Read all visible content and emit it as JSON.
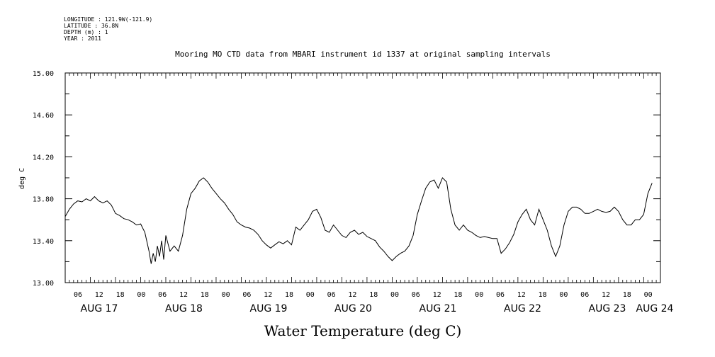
{
  "header": {
    "longitude": "LONGITUDE : 121.9W(-121.9)",
    "latitude": "LATITUDE : 36.8N",
    "depth": "DEPTH (m) : 1",
    "year": "YEAR : 2011"
  },
  "chart_data": {
    "type": "line",
    "title": "Mooring MO CTD data from MBARI instrument id 1337 at original sampling intervals",
    "xlabel": "Water Temperature (deg C)",
    "ylabel": "deg C",
    "ylim": [
      13.0,
      15.0
    ],
    "xlim_hours": [
      0,
      142
    ],
    "y_ticks": [
      "13.00",
      "13.40",
      "13.80",
      "14.20",
      "14.60",
      "15.00"
    ],
    "hour_tick_labels": [
      "06",
      "12",
      "18",
      "00",
      "06",
      "12",
      "18",
      "00",
      "06",
      "12",
      "18",
      "00",
      "06",
      "12",
      "18",
      "00",
      "06",
      "12",
      "18",
      "00",
      "06",
      "12",
      "18",
      "00",
      "06",
      "12",
      "18",
      "00"
    ],
    "day_labels": [
      "AUG 17",
      "AUG 18",
      "AUG 19",
      "AUG 20",
      "AUG 21",
      "AUG 22",
      "AUG 23",
      "AUG 24"
    ],
    "grid": false,
    "series": [
      {
        "values": [
          [
            0,
            13.63
          ],
          [
            1,
            13.7
          ],
          [
            2,
            13.75
          ],
          [
            3,
            13.78
          ],
          [
            4,
            13.77
          ],
          [
            5,
            13.8
          ],
          [
            6,
            13.78
          ],
          [
            7,
            13.82
          ],
          [
            8,
            13.78
          ],
          [
            9,
            13.76
          ],
          [
            10,
            13.78
          ],
          [
            11,
            13.74
          ],
          [
            12,
            13.66
          ],
          [
            13,
            13.64
          ],
          [
            14,
            13.61
          ],
          [
            15,
            13.6
          ],
          [
            16,
            13.58
          ],
          [
            17,
            13.55
          ],
          [
            18,
            13.56
          ],
          [
            19,
            13.48
          ],
          [
            20,
            13.3
          ],
          [
            20.5,
            13.18
          ],
          [
            21,
            13.28
          ],
          [
            21.5,
            13.2
          ],
          [
            22,
            13.35
          ],
          [
            22.5,
            13.25
          ],
          [
            23,
            13.4
          ],
          [
            23.5,
            13.22
          ],
          [
            24,
            13.45
          ],
          [
            25,
            13.3
          ],
          [
            26,
            13.35
          ],
          [
            27,
            13.3
          ],
          [
            28,
            13.45
          ],
          [
            29,
            13.7
          ],
          [
            30,
            13.85
          ],
          [
            31,
            13.9
          ],
          [
            32,
            13.97
          ],
          [
            33,
            14.0
          ],
          [
            34,
            13.96
          ],
          [
            35,
            13.9
          ],
          [
            36,
            13.85
          ],
          [
            37,
            13.8
          ],
          [
            38,
            13.76
          ],
          [
            39,
            13.7
          ],
          [
            40,
            13.65
          ],
          [
            41,
            13.58
          ],
          [
            42,
            13.55
          ],
          [
            43,
            13.53
          ],
          [
            44,
            13.52
          ],
          [
            45,
            13.5
          ],
          [
            46,
            13.46
          ],
          [
            47,
            13.4
          ],
          [
            48,
            13.36
          ],
          [
            49,
            13.33
          ],
          [
            50,
            13.36
          ],
          [
            51,
            13.39
          ],
          [
            52,
            13.37
          ],
          [
            53,
            13.4
          ],
          [
            54,
            13.36
          ],
          [
            55,
            13.53
          ],
          [
            56,
            13.5
          ],
          [
            57,
            13.55
          ],
          [
            58,
            13.6
          ],
          [
            59,
            13.68
          ],
          [
            60,
            13.7
          ],
          [
            61,
            13.62
          ],
          [
            62,
            13.5
          ],
          [
            63,
            13.48
          ],
          [
            64,
            13.55
          ],
          [
            65,
            13.5
          ],
          [
            66,
            13.45
          ],
          [
            67,
            13.43
          ],
          [
            68,
            13.48
          ],
          [
            69,
            13.5
          ],
          [
            70,
            13.46
          ],
          [
            71,
            13.48
          ],
          [
            72,
            13.44
          ],
          [
            73,
            13.42
          ],
          [
            74,
            13.4
          ],
          [
            75,
            13.34
          ],
          [
            76,
            13.3
          ],
          [
            77,
            13.25
          ],
          [
            78,
            13.21
          ],
          [
            79,
            13.25
          ],
          [
            80,
            13.28
          ],
          [
            81,
            13.3
          ],
          [
            82,
            13.35
          ],
          [
            83,
            13.45
          ],
          [
            84,
            13.65
          ],
          [
            85,
            13.78
          ],
          [
            86,
            13.9
          ],
          [
            87,
            13.96
          ],
          [
            88,
            13.98
          ],
          [
            89,
            13.9
          ],
          [
            90,
            14.0
          ],
          [
            91,
            13.96
          ],
          [
            92,
            13.7
          ],
          [
            93,
            13.55
          ],
          [
            94,
            13.5
          ],
          [
            95,
            13.55
          ],
          [
            96,
            13.5
          ],
          [
            97,
            13.48
          ],
          [
            98,
            13.45
          ],
          [
            99,
            13.43
          ],
          [
            100,
            13.44
          ],
          [
            101,
            13.43
          ],
          [
            102,
            13.42
          ],
          [
            103,
            13.42
          ],
          [
            104,
            13.28
          ],
          [
            105,
            13.32
          ],
          [
            106,
            13.38
          ],
          [
            107,
            13.46
          ],
          [
            108,
            13.58
          ],
          [
            109,
            13.65
          ],
          [
            110,
            13.7
          ],
          [
            111,
            13.6
          ],
          [
            112,
            13.55
          ],
          [
            113,
            13.7
          ],
          [
            114,
            13.6
          ],
          [
            115,
            13.5
          ],
          [
            116,
            13.35
          ],
          [
            117,
            13.25
          ],
          [
            118,
            13.35
          ],
          [
            119,
            13.55
          ],
          [
            120,
            13.68
          ],
          [
            121,
            13.72
          ],
          [
            122,
            13.72
          ],
          [
            123,
            13.7
          ],
          [
            124,
            13.66
          ],
          [
            125,
            13.66
          ],
          [
            126,
            13.68
          ],
          [
            127,
            13.7
          ],
          [
            128,
            13.68
          ],
          [
            129,
            13.67
          ],
          [
            130,
            13.68
          ],
          [
            131,
            13.72
          ],
          [
            132,
            13.68
          ],
          [
            133,
            13.6
          ],
          [
            134,
            13.55
          ],
          [
            135,
            13.55
          ],
          [
            136,
            13.6
          ],
          [
            137,
            13.6
          ],
          [
            138,
            13.65
          ],
          [
            139,
            13.85
          ],
          [
            140,
            13.95
          ]
        ]
      }
    ]
  }
}
